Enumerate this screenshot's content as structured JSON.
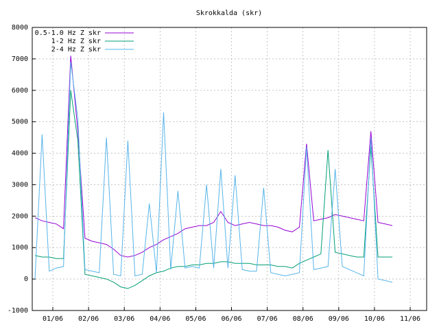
{
  "chart_data": {
    "type": "line",
    "title": "Skrokkalda (skr)",
    "x": [
      0.5,
      0.7,
      0.9,
      1.1,
      1.3,
      1.5,
      1.7,
      1.9,
      2.1,
      2.3,
      2.5,
      2.7,
      2.9,
      3.1,
      3.3,
      3.5,
      3.7,
      3.9,
      4.1,
      4.3,
      4.5,
      4.7,
      4.9,
      5.1,
      5.3,
      5.5,
      5.7,
      5.9,
      6.1,
      6.3,
      6.5,
      6.7,
      6.9,
      7.1,
      7.3,
      7.5,
      7.7,
      7.9,
      8.1,
      8.3,
      8.5,
      8.7,
      8.9,
      9.1,
      9.3,
      9.5,
      9.7,
      9.9,
      10.1,
      10.3,
      10.5
    ],
    "series": [
      {
        "name": "0.5-1.0 Hz Z skr",
        "color": "#9400d3",
        "values": [
          1950,
          1850,
          1800,
          1750,
          1600,
          7100,
          4700,
          1300,
          1200,
          1150,
          1100,
          950,
          750,
          700,
          750,
          850,
          1000,
          1100,
          1250,
          1350,
          1450,
          1600,
          1650,
          1700,
          1700,
          1800,
          2150,
          1800,
          1700,
          1750,
          1800,
          1750,
          1700,
          1700,
          1650,
          1550,
          1500,
          1650,
          4300,
          1850,
          1900,
          1950,
          2050,
          2000,
          1950,
          1900,
          1850,
          4700,
          1800,
          1750,
          1700
        ]
      },
      {
        "name": "1-2 Hz Z skr",
        "color": "#009e73",
        "values": [
          750,
          700,
          700,
          650,
          650,
          6000,
          4400,
          150,
          100,
          50,
          0,
          -100,
          -250,
          -300,
          -200,
          -50,
          100,
          200,
          250,
          350,
          400,
          400,
          450,
          450,
          500,
          500,
          550,
          550,
          500,
          500,
          500,
          450,
          450,
          450,
          400,
          400,
          350,
          500,
          600,
          700,
          800,
          4100,
          850,
          800,
          750,
          700,
          700,
          4200,
          700,
          700,
          700
        ]
      },
      {
        "name": "2-4 Hz Z skr",
        "color": "#56b4e9",
        "values": [
          0,
          4600,
          250,
          350,
          400,
          6900,
          5100,
          300,
          250,
          200,
          4500,
          150,
          100,
          4400,
          100,
          150,
          2400,
          200,
          5300,
          300,
          2800,
          350,
          400,
          350,
          3000,
          350,
          3500,
          350,
          3300,
          300,
          250,
          250,
          2900,
          200,
          150,
          100,
          150,
          200,
          4200,
          300,
          350,
          400,
          3500,
          400,
          300,
          200,
          100,
          4500,
          0,
          -50,
          -100
        ]
      }
    ],
    "xlim": [
      0.424,
      11.46
    ],
    "xticks": [
      {
        "value": 1,
        "label": "01/06"
      },
      {
        "value": 2,
        "label": "02/06"
      },
      {
        "value": 3,
        "label": "03/06"
      },
      {
        "value": 4,
        "label": "04/06"
      },
      {
        "value": 5,
        "label": "05/06"
      },
      {
        "value": 6,
        "label": "06/06"
      },
      {
        "value": 7,
        "label": "07/06"
      },
      {
        "value": 8,
        "label": "08/06"
      },
      {
        "value": 9,
        "label": "09/06"
      },
      {
        "value": 10,
        "label": "10/06"
      },
      {
        "value": 11,
        "label": "11/06"
      }
    ],
    "ylim": [
      -1000,
      8000
    ],
    "yticks": [
      -1000,
      0,
      1000,
      2000,
      3000,
      4000,
      5000,
      6000,
      7000,
      8000
    ],
    "grid": true,
    "legend": "top-left"
  }
}
